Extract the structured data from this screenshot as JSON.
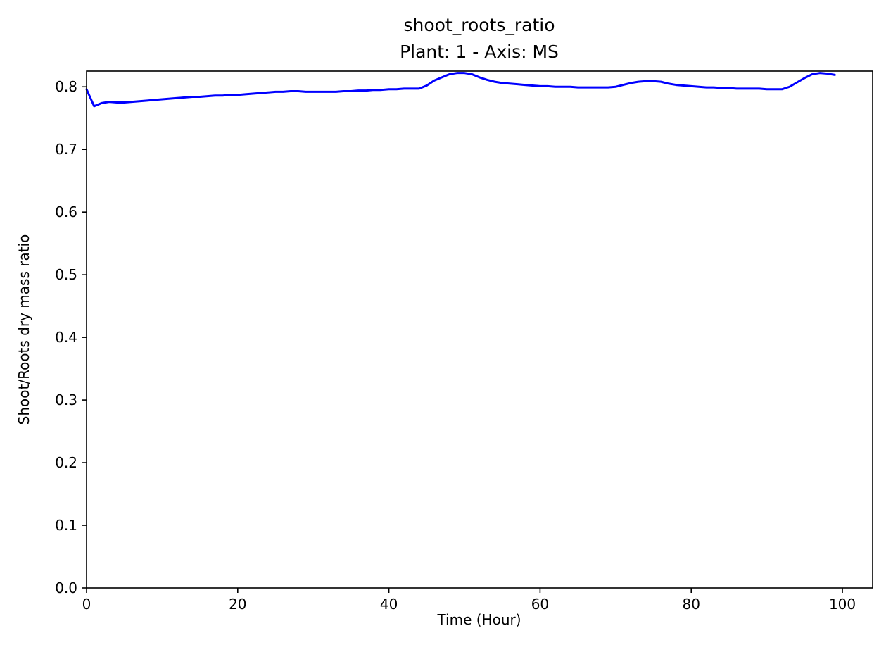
{
  "chart_data": {
    "type": "line",
    "title": "shoot_roots_ratio",
    "subtitle": "Plant: 1 - Axis: MS",
    "xlabel": "Time (Hour)",
    "ylabel": "Shoot/Roots dry mass ratio",
    "xlim": [
      0,
      104
    ],
    "ylim": [
      0,
      0.825
    ],
    "xticks": [
      0,
      20,
      40,
      60,
      80,
      100
    ],
    "yticks": [
      0.0,
      0.1,
      0.2,
      0.3,
      0.4,
      0.5,
      0.6,
      0.7,
      0.8
    ],
    "grid": false,
    "series": [
      {
        "color": "#0000ff",
        "x": [
          0,
          1,
          2,
          3,
          4,
          5,
          6,
          7,
          8,
          9,
          10,
          11,
          12,
          13,
          14,
          15,
          16,
          17,
          18,
          19,
          20,
          21,
          22,
          23,
          24,
          25,
          26,
          27,
          28,
          29,
          30,
          31,
          32,
          33,
          34,
          35,
          36,
          37,
          38,
          39,
          40,
          41,
          42,
          43,
          44,
          45,
          46,
          47,
          48,
          49,
          50,
          51,
          52,
          53,
          54,
          55,
          56,
          57,
          58,
          59,
          60,
          61,
          62,
          63,
          64,
          65,
          66,
          67,
          68,
          69,
          70,
          71,
          72,
          73,
          74,
          75,
          76,
          77,
          78,
          79,
          80,
          81,
          82,
          83,
          84,
          85,
          86,
          87,
          88,
          89,
          90,
          91,
          92,
          93,
          94,
          95,
          96,
          97,
          98,
          99
        ],
        "y": [
          0.796,
          0.769,
          0.774,
          0.776,
          0.775,
          0.775,
          0.776,
          0.777,
          0.778,
          0.779,
          0.78,
          0.781,
          0.782,
          0.783,
          0.784,
          0.784,
          0.785,
          0.786,
          0.786,
          0.787,
          0.787,
          0.788,
          0.789,
          0.79,
          0.791,
          0.792,
          0.792,
          0.793,
          0.793,
          0.792,
          0.792,
          0.792,
          0.792,
          0.792,
          0.793,
          0.793,
          0.794,
          0.794,
          0.795,
          0.795,
          0.796,
          0.796,
          0.797,
          0.797,
          0.797,
          0.802,
          0.81,
          0.815,
          0.82,
          0.822,
          0.822,
          0.82,
          0.815,
          0.811,
          0.808,
          0.806,
          0.805,
          0.804,
          0.803,
          0.802,
          0.801,
          0.801,
          0.8,
          0.8,
          0.8,
          0.799,
          0.799,
          0.799,
          0.799,
          0.799,
          0.8,
          0.803,
          0.806,
          0.808,
          0.809,
          0.809,
          0.808,
          0.805,
          0.803,
          0.802,
          0.801,
          0.8,
          0.799,
          0.799,
          0.798,
          0.798,
          0.797,
          0.797,
          0.797,
          0.797,
          0.796,
          0.796,
          0.796,
          0.8,
          0.807,
          0.814,
          0.82,
          0.822,
          0.821,
          0.819
        ]
      }
    ]
  }
}
